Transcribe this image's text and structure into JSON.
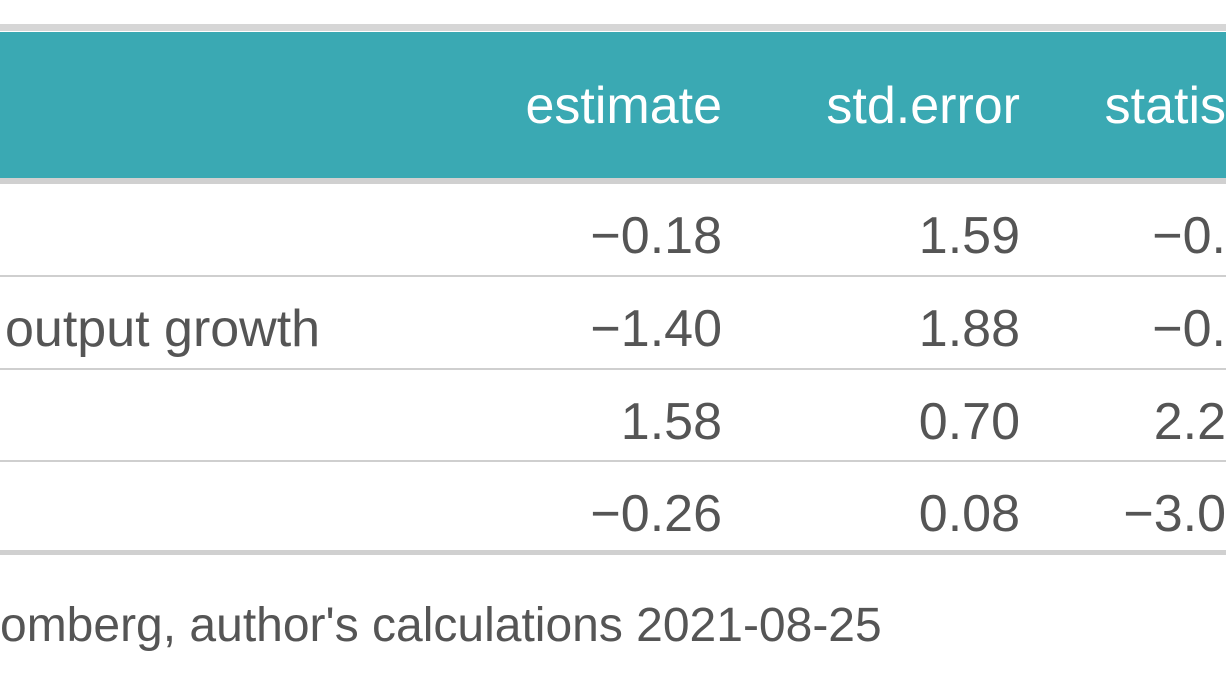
{
  "table": {
    "header": [
      "estimate",
      "std.error",
      "statis"
    ],
    "rows": [
      {
        "cells": [
          "−0.18",
          "1.59",
          "−0."
        ]
      },
      {
        "label": "output growth",
        "cells": [
          "−1.40",
          "1.88",
          "−0."
        ]
      },
      {
        "cells": [
          "1.58",
          "0.70",
          "2.2"
        ]
      },
      {
        "cells": [
          "−0.26",
          "0.08",
          "−3.0"
        ]
      }
    ]
  },
  "footer": "omberg, author's calculations 2021-08-25"
}
